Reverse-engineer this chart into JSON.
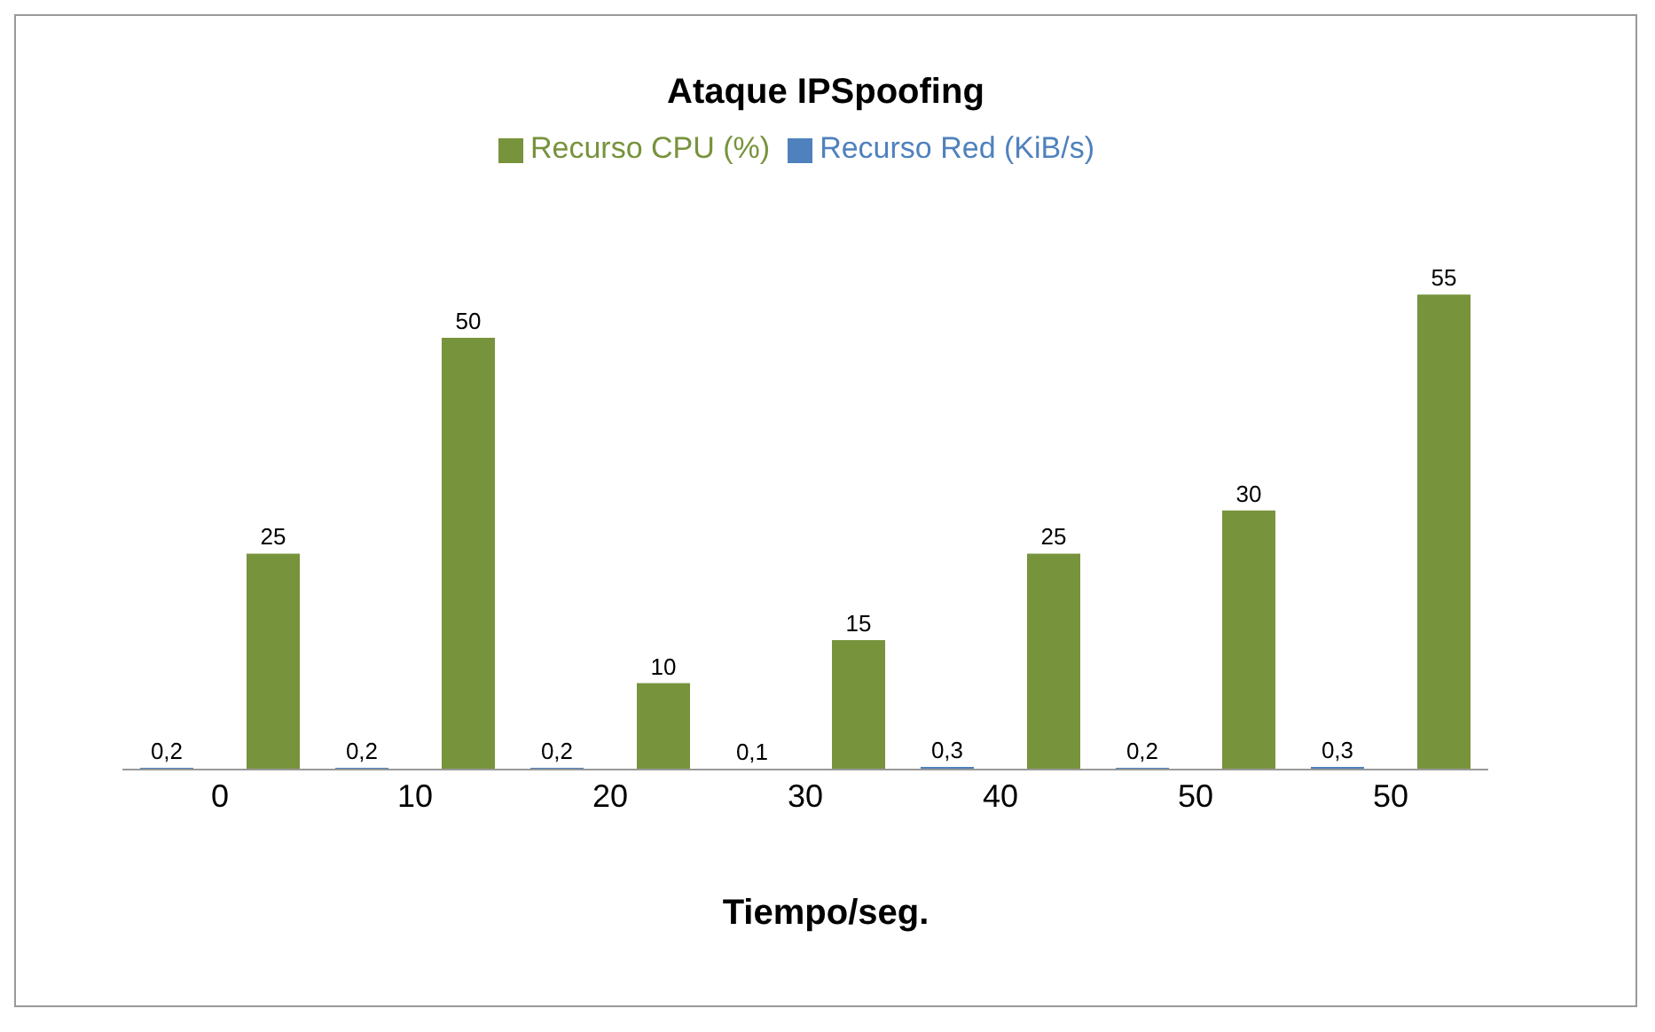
{
  "chart_data": {
    "type": "bar",
    "title": "Ataque IPSpoofing",
    "xlabel": "Tiempo/seg.",
    "categories": [
      "0",
      "10",
      "20",
      "30",
      "40",
      "50",
      "50"
    ],
    "series": [
      {
        "name": "Recurso Red (KiB/s)",
        "color": "#4f81bd",
        "values": [
          0.2,
          0.2,
          0.2,
          0.1,
          0.3,
          0.2,
          0.3
        ],
        "value_labels": [
          "0,2",
          "0,2",
          "0,2",
          "0,1",
          "0,3",
          "0,2",
          "0,3"
        ]
      },
      {
        "name": "Recurso CPU (%)",
        "color": "#77933c",
        "values": [
          25,
          50,
          10,
          15,
          25,
          30,
          55
        ],
        "value_labels": [
          "25",
          "50",
          "10",
          "15",
          "25",
          "30",
          "55"
        ]
      }
    ],
    "legend": "top",
    "grid": false
  }
}
